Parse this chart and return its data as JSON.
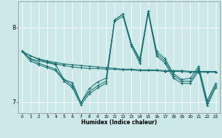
{
  "title": "",
  "xlabel": "Humidex (Indice chaleur)",
  "bg_color": "#cce8e8",
  "line_color": "#1a7070",
  "grid_color": "#ffffff",
  "xlim": [
    -0.5,
    23.5
  ],
  "ylim": [
    6.85,
    8.35
  ],
  "yticks": [
    7.0,
    8.0
  ],
  "xticks": [
    0,
    1,
    2,
    3,
    4,
    5,
    6,
    7,
    8,
    9,
    10,
    11,
    12,
    13,
    14,
    15,
    16,
    17,
    18,
    19,
    20,
    21,
    22,
    23
  ],
  "lines": [
    [
      7.68,
      7.62,
      7.58,
      7.55,
      7.53,
      7.51,
      7.5,
      7.49,
      7.48,
      7.47,
      7.46,
      7.45,
      7.44,
      7.44,
      7.43,
      7.43,
      7.43,
      7.42,
      7.42,
      7.42,
      7.41,
      7.41,
      7.41,
      7.41
    ],
    [
      7.68,
      7.62,
      7.57,
      7.54,
      7.51,
      7.49,
      7.47,
      7.46,
      7.45,
      7.45,
      7.44,
      7.44,
      7.43,
      7.43,
      7.42,
      7.42,
      7.42,
      7.41,
      7.41,
      7.41,
      7.4,
      7.4,
      7.4,
      7.4
    ],
    [
      7.68,
      7.58,
      7.55,
      7.53,
      7.5,
      7.3,
      7.26,
      6.99,
      7.18,
      7.27,
      7.32,
      8.1,
      8.18,
      7.78,
      7.58,
      8.22,
      7.68,
      7.58,
      7.38,
      7.3,
      7.32,
      7.48,
      7.02,
      7.25
    ],
    [
      7.68,
      7.58,
      7.52,
      7.48,
      7.44,
      7.3,
      7.22,
      6.99,
      7.14,
      7.22,
      7.28,
      8.1,
      8.18,
      7.78,
      7.55,
      8.22,
      7.65,
      7.55,
      7.35,
      7.28,
      7.28,
      7.45,
      6.98,
      7.22
    ],
    [
      7.68,
      7.55,
      7.5,
      7.46,
      7.42,
      7.28,
      7.19,
      6.96,
      7.11,
      7.19,
      7.25,
      8.08,
      8.15,
      7.75,
      7.52,
      8.19,
      7.62,
      7.52,
      7.32,
      7.25,
      7.25,
      7.42,
      6.95,
      7.19
    ]
  ]
}
